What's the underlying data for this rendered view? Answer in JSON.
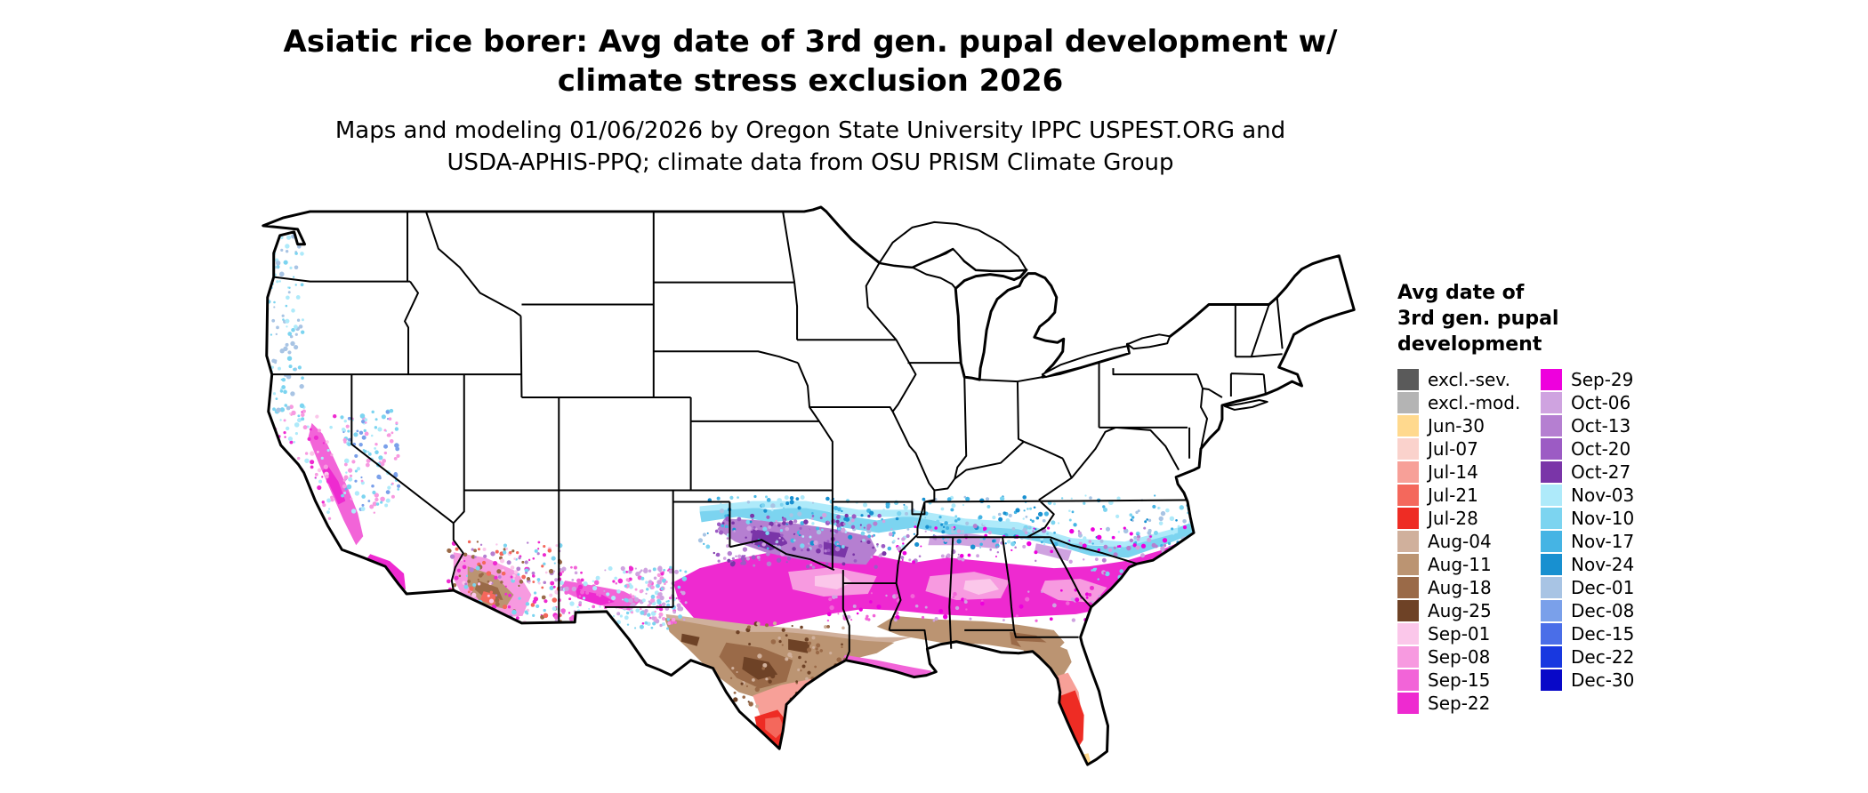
{
  "title": {
    "line1": "Asiatic rice borer: Avg date of 3rd gen. pupal development w/",
    "line2": "climate stress exclusion 2026"
  },
  "subtitle": {
    "line1": "Maps and modeling 01/06/2026 by Oregon State University IPPC USPEST.ORG and",
    "line2": "USDA-APHIS-PPQ; climate data from OSU PRISM Climate Group"
  },
  "legend": {
    "title_lines": [
      "Avg date of",
      "3rd gen. pupal",
      "development"
    ],
    "column1": [
      {
        "label": "excl.-sev.",
        "color": "#5a5a5a"
      },
      {
        "label": "excl.-mod.",
        "color": "#b4b4b4"
      },
      {
        "label": "Jun-30",
        "color": "#ffd98e"
      },
      {
        "label": "Jul-07",
        "color": "#fad2cc"
      },
      {
        "label": "Jul-14",
        "color": "#f7a098"
      },
      {
        "label": "Jul-21",
        "color": "#f4685c"
      },
      {
        "label": "Jul-28",
        "color": "#ee2c24"
      },
      {
        "label": "Aug-04",
        "color": "#d0b09c"
      },
      {
        "label": "Aug-11",
        "color": "#bb9472"
      },
      {
        "label": "Aug-18",
        "color": "#9a6a48"
      },
      {
        "label": "Aug-25",
        "color": "#6e4226"
      },
      {
        "label": "Sep-01",
        "color": "#fbc7ea"
      },
      {
        "label": "Sep-08",
        "color": "#f79ae0"
      },
      {
        "label": "Sep-15",
        "color": "#f264d8"
      },
      {
        "label": "Sep-22",
        "color": "#ee2ad0"
      }
    ],
    "column2": [
      {
        "label": "Sep-29",
        "color": "#ee00dd"
      },
      {
        "label": "Oct-06",
        "color": "#cfa3e0"
      },
      {
        "label": "Oct-13",
        "color": "#b57fd1"
      },
      {
        "label": "Oct-20",
        "color": "#9c5bc4"
      },
      {
        "label": "Oct-27",
        "color": "#7a35a8"
      },
      {
        "label": "Nov-03",
        "color": "#aeeafa"
      },
      {
        "label": "Nov-10",
        "color": "#7cd4f0"
      },
      {
        "label": "Nov-17",
        "color": "#45b4e4"
      },
      {
        "label": "Nov-24",
        "color": "#1890d0"
      },
      {
        "label": "Dec-01",
        "color": "#a8c4e4"
      },
      {
        "label": "Dec-08",
        "color": "#7aa0ea"
      },
      {
        "label": "Dec-15",
        "color": "#4a6ee8"
      },
      {
        "label": "Dec-22",
        "color": "#1838e0"
      },
      {
        "label": "Dec-30",
        "color": "#0808c8"
      }
    ]
  }
}
